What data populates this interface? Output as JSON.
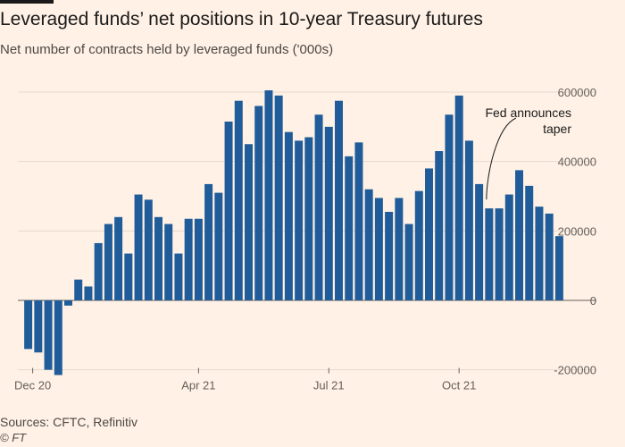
{
  "header": {
    "title": "Leveraged funds’ net positions in 10-year Treasury futures",
    "subtitle": "Net number of contracts held by leveraged funds ('000s)"
  },
  "footer": {
    "source": "Sources: CFTC, Refinitiv",
    "credit": "© FT"
  },
  "chart_data": {
    "type": "bar",
    "title": "Leveraged funds’ net positions in 10-year Treasury futures",
    "subtitle": "Net number of contracts held by leveraged funds ('000s)",
    "xlabel": "",
    "ylabel": "",
    "ylim": [
      -210000,
      620000
    ],
    "yticks": [
      600000,
      400000,
      200000,
      0,
      -200000
    ],
    "ytick_labels": [
      "600000",
      "400000",
      "200000",
      "0",
      "-200000"
    ],
    "xtick_labels": [
      "Dec 20",
      "Apr 21",
      "Jul 21",
      "Oct 21"
    ],
    "xtick_bar_index": [
      0,
      17,
      30,
      43
    ],
    "values": [
      -140000,
      -150000,
      -200000,
      -215000,
      -15000,
      60000,
      40000,
      165000,
      220000,
      240000,
      135000,
      305000,
      290000,
      240000,
      220000,
      135000,
      235000,
      235000,
      335000,
      310000,
      515000,
      575000,
      450000,
      560000,
      605000,
      590000,
      485000,
      460000,
      470000,
      535000,
      500000,
      575000,
      415000,
      455000,
      320000,
      295000,
      255000,
      295000,
      220000,
      315000,
      380000,
      430000,
      535000,
      590000,
      460000,
      335000,
      265000,
      265000,
      305000,
      375000,
      330000,
      270000,
      250000,
      185000
    ],
    "bar_color": "#1f5c99",
    "grid": true,
    "annotation": {
      "text_lines": [
        "Fed announces",
        "taper"
      ],
      "bar_index": 46
    }
  }
}
